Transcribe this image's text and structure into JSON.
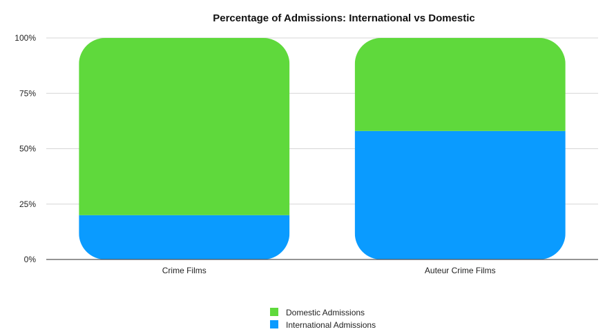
{
  "chart_data": {
    "type": "bar",
    "stacked": true,
    "title": "Percentage of Admissions: International vs Domestic",
    "categories": [
      "Crime Films",
      "Auteur Crime Films"
    ],
    "series": [
      {
        "name": "International Admissions",
        "values": [
          20,
          58
        ],
        "color": "#0a9bff"
      },
      {
        "name": "Domestic Admissions",
        "values": [
          80,
          42
        ],
        "color": "#5fd93c"
      }
    ],
    "ylim": [
      0,
      100
    ],
    "yticks": [
      "0%",
      "25%",
      "50%",
      "75%",
      "100%"
    ],
    "grid": true,
    "legend_position": "bottom-center",
    "legend_order": [
      "Domestic Admissions",
      "International Admissions"
    ]
  }
}
